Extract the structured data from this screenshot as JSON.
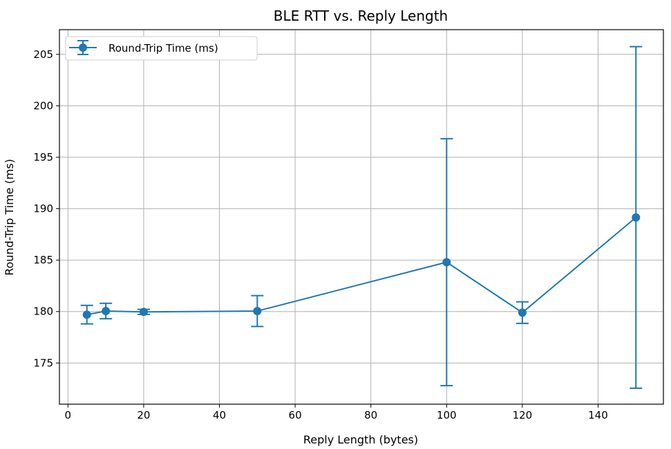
{
  "chart_data": {
    "type": "line",
    "title": "BLE RTT vs. Reply Length",
    "xlabel": "Reply Length (bytes)",
    "ylabel": "Round-Trip Time (ms)",
    "xlim": [
      -2.25,
      157.25
    ],
    "ylim": [
      171.0,
      207.4
    ],
    "xticks": [
      0,
      20,
      40,
      60,
      80,
      100,
      120,
      140
    ],
    "yticks": [
      175,
      180,
      185,
      190,
      195,
      200,
      205
    ],
    "grid": true,
    "legend_position": "top-left",
    "series": [
      {
        "name": "Round-Trip Time (ms)",
        "color": "#1f77b4",
        "marker": "circle",
        "error_bars": true,
        "x": [
          5,
          10,
          20,
          50,
          100,
          120,
          150
        ],
        "y": [
          179.7,
          180.05,
          179.97,
          180.05,
          184.8,
          179.9,
          189.15
        ],
        "err": [
          0.9,
          0.75,
          0.25,
          1.5,
          12.0,
          1.05,
          16.6
        ]
      }
    ]
  }
}
